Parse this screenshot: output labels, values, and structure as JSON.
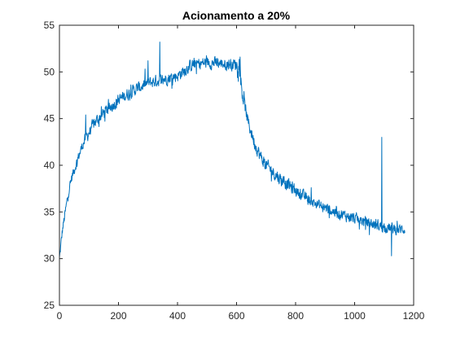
{
  "chart_data": {
    "type": "line",
    "title": "Acionamento a 20%",
    "xlabel": "",
    "ylabel": "",
    "xlim": [
      0,
      1200
    ],
    "ylim": [
      25,
      55
    ],
    "x_ticks": [
      0,
      200,
      400,
      600,
      800,
      1000,
      1200
    ],
    "y_ticks": [
      25,
      30,
      35,
      40,
      45,
      50,
      55
    ],
    "x_tick_labels": [
      "0",
      "200",
      "400",
      "600",
      "800",
      "1000",
      "1200"
    ],
    "y_tick_labels": [
      "25",
      "30",
      "35",
      "40",
      "45",
      "50",
      "55"
    ],
    "grid": false,
    "legend": "none",
    "series": [
      {
        "color": "#0072BD",
        "x_start": 0,
        "x_end": 1170,
        "trend_points": [
          [
            0,
            30.0
          ],
          [
            5,
            31.5
          ],
          [
            10,
            33.0
          ],
          [
            20,
            35.0
          ],
          [
            30,
            37.0
          ],
          [
            40,
            38.5
          ],
          [
            60,
            40.5
          ],
          [
            80,
            42.3
          ],
          [
            100,
            43.5
          ],
          [
            120,
            44.6
          ],
          [
            150,
            45.6
          ],
          [
            200,
            47.0
          ],
          [
            250,
            48.0
          ],
          [
            300,
            48.8
          ],
          [
            350,
            49.2
          ],
          [
            400,
            49.6
          ],
          [
            450,
            50.8
          ],
          [
            500,
            51.0
          ],
          [
            550,
            50.9
          ],
          [
            600,
            50.8
          ],
          [
            610,
            50.5
          ],
          [
            620,
            47.5
          ],
          [
            640,
            44.5
          ],
          [
            660,
            42.5
          ],
          [
            680,
            41.0
          ],
          [
            700,
            40.0
          ],
          [
            750,
            38.5
          ],
          [
            800,
            37.3
          ],
          [
            850,
            36.2
          ],
          [
            900,
            35.4
          ],
          [
            950,
            34.8
          ],
          [
            1000,
            34.3
          ],
          [
            1050,
            33.8
          ],
          [
            1100,
            33.4
          ],
          [
            1150,
            33.1
          ],
          [
            1170,
            33.2
          ]
        ],
        "spikes": [
          [
            89,
            45.4
          ],
          [
            300,
            51.2
          ],
          [
            340,
            53.2
          ],
          [
            612,
            51.6
          ],
          [
            1092,
            43.0
          ],
          [
            1125,
            30.3
          ]
        ]
      }
    ]
  }
}
